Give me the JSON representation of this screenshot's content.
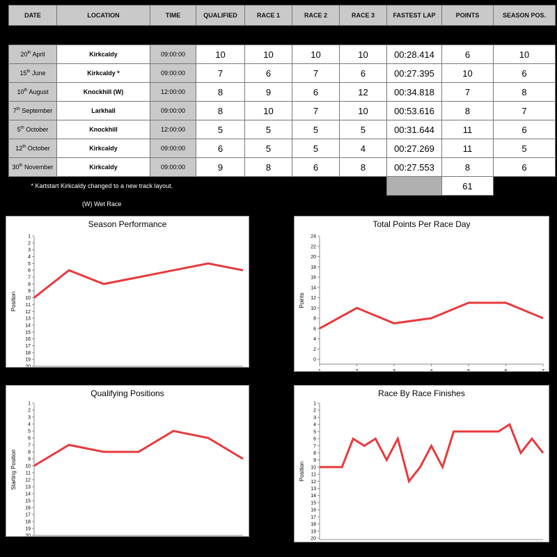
{
  "table": {
    "headers": [
      "DATE",
      "LOCATION",
      "TIME",
      "QUALIFIED",
      "RACE 1",
      "RACE 2",
      "RACE 3",
      "FASTEST LAP",
      "POINTS",
      "SEASON POS."
    ],
    "rows": [
      {
        "day": "20",
        "suffix": "th",
        "month": " April",
        "location": "Kirkcaldy",
        "time": "09:00:00",
        "qualified": "10",
        "race1": "10",
        "race2": "10",
        "race3": "10",
        "fastest_lap": "00:28.414",
        "points": "6",
        "season_pos": "10"
      },
      {
        "day": "15",
        "suffix": "th",
        "month": " June",
        "location": "Kirkcaldy *",
        "time": "09:00:00",
        "qualified": "7",
        "race1": "6",
        "race2": "7",
        "race3": "6",
        "fastest_lap": "00:27.395",
        "points": "10",
        "season_pos": "6"
      },
      {
        "day": "10",
        "suffix": "th",
        "month": " August",
        "location": "Knockhill (W)",
        "time": "12:00:00",
        "qualified": "8",
        "race1": "9",
        "race2": "6",
        "race3": "12",
        "fastest_lap": "00:34.818",
        "points": "7",
        "season_pos": "8"
      },
      {
        "day": "7",
        "suffix": "th",
        "month": " September",
        "location": "Larkhall",
        "time": "09:00:00",
        "qualified": "8",
        "race1": "10",
        "race2": "7",
        "race3": "10",
        "fastest_lap": "00:53.616",
        "points": "8",
        "season_pos": "7"
      },
      {
        "day": "5",
        "suffix": "th",
        "month": " October",
        "location": "Knockhill",
        "time": "12:00:00",
        "qualified": "5",
        "race1": "5",
        "race2": "5",
        "race3": "5",
        "fastest_lap": "00:31.644",
        "points": "11",
        "season_pos": "6"
      },
      {
        "day": "12",
        "suffix": "th",
        "month": " October",
        "location": "Kirkcaldy",
        "time": "09:00:00",
        "qualified": "6",
        "race1": "5",
        "race2": "5",
        "race3": "4",
        "fastest_lap": "00:27.269",
        "points": "11",
        "season_pos": "5"
      },
      {
        "day": "30",
        "suffix": "th",
        "month": " November",
        "location": "Kirkcaldy",
        "time": "09:00:00",
        "qualified": "9",
        "race1": "8",
        "race2": "6",
        "race3": "8",
        "fastest_lap": "00:27.553",
        "points": "8",
        "season_pos": "6"
      }
    ],
    "footnote": "* Kartstart Kirkcaldy changed to a new track layout.",
    "total_points": "61",
    "wet_note": "(W) Wet Race"
  },
  "colors": {
    "line": "#e8393c",
    "header_bg": "#c9c9c9",
    "background": "#000000"
  },
  "chart_data": [
    {
      "type": "line",
      "title": "Season Performance",
      "ylabel": "Position",
      "xlabel": "",
      "y_inverted": true,
      "ylim": [
        1,
        20
      ],
      "y_ticks": [
        "1",
        "2",
        "3",
        "4",
        "5",
        "6",
        "7",
        "8",
        "9",
        "10",
        "11",
        "12",
        "13",
        "14",
        "15",
        "16",
        "17",
        "18",
        "19",
        "20"
      ],
      "x_ticks": [],
      "grid": false,
      "values": [
        10,
        6,
        8,
        7,
        6,
        5,
        6
      ]
    },
    {
      "type": "line",
      "title": "Total Points Per Race Day",
      "ylabel": "Points",
      "xlabel": "",
      "y_inverted": false,
      "ylim": [
        0,
        24
      ],
      "y_ticks": [
        "0",
        "2",
        "4",
        "6",
        "8",
        "10",
        "12",
        "14",
        "16",
        "18",
        "20",
        "22",
        "24"
      ],
      "x_ticks": [
        "1",
        "2",
        "3",
        "4",
        "5",
        "6",
        "7"
      ],
      "grid": false,
      "values": [
        6,
        10,
        7,
        8,
        11,
        11,
        8
      ]
    },
    {
      "type": "line",
      "title": "Qualifying Positions",
      "ylabel": "Starting Position",
      "xlabel": "",
      "y_inverted": true,
      "ylim": [
        1,
        20
      ],
      "y_ticks": [
        "1",
        "2",
        "3",
        "4",
        "5",
        "6",
        "7",
        "8",
        "9",
        "10",
        "11",
        "12",
        "13",
        "14",
        "15",
        "16",
        "17",
        "18",
        "19",
        "20"
      ],
      "x_ticks": [],
      "grid": false,
      "values": [
        10,
        7,
        8,
        8,
        5,
        6,
        9
      ]
    },
    {
      "type": "line",
      "title": "Race By Race Finishes",
      "ylabel": "Position",
      "xlabel": "",
      "y_inverted": true,
      "ylim": [
        1,
        20
      ],
      "y_ticks": [
        "1",
        "2",
        "3",
        "4",
        "5",
        "6",
        "7",
        "8",
        "9",
        "10",
        "11",
        "12",
        "13",
        "14",
        "15",
        "16",
        "17",
        "18",
        "19",
        "20"
      ],
      "x_ticks": [],
      "grid": false,
      "values": [
        10,
        10,
        10,
        6,
        7,
        6,
        9,
        6,
        12,
        10,
        7,
        10,
        5,
        5,
        5,
        5,
        5,
        4,
        8,
        6,
        8
      ]
    }
  ]
}
